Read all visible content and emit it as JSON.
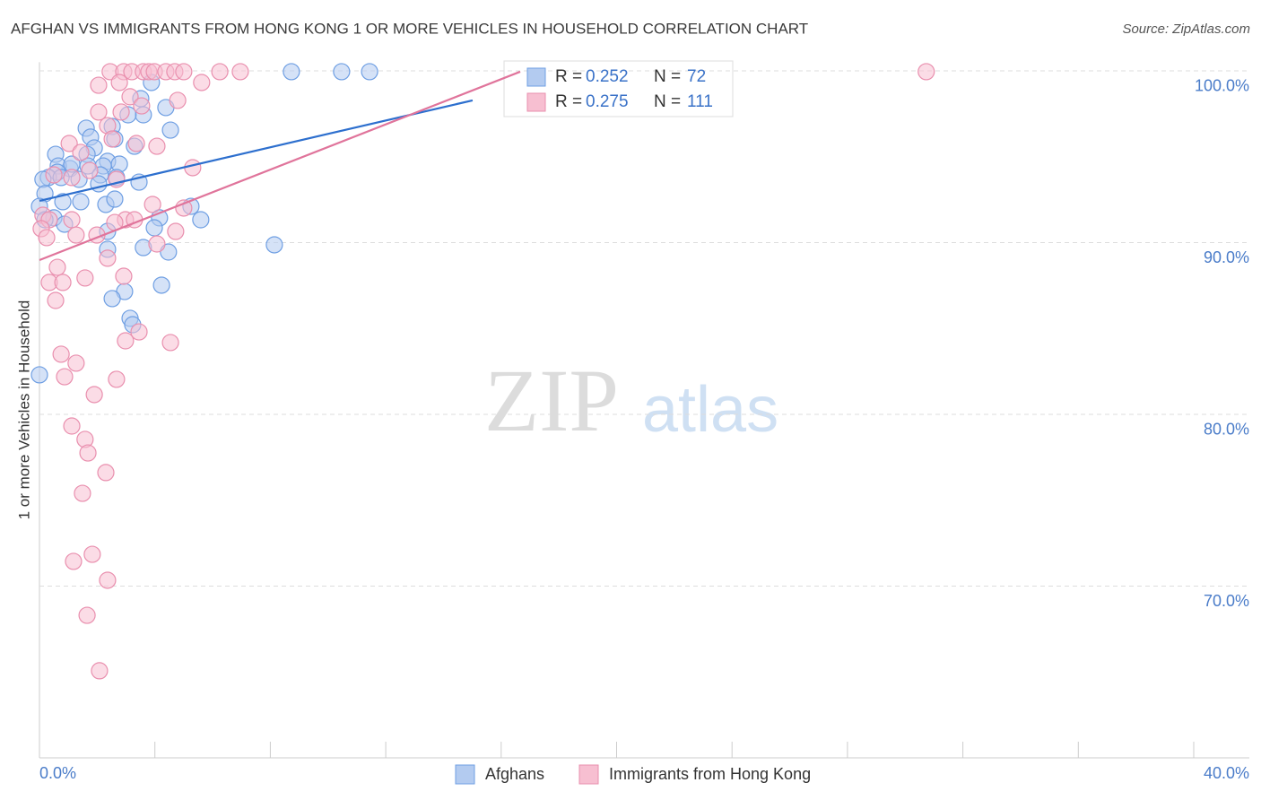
{
  "chart_data": {
    "type": "scatter",
    "title": "AFGHAN VS IMMIGRANTS FROM HONG KONG 1 OR MORE VEHICLES IN HOUSEHOLD CORRELATION CHART",
    "source": "Source: ZipAtlas.com",
    "y_label": "1 or more Vehicles in Household",
    "watermark": {
      "bold": "ZIP",
      "light": "atlas"
    },
    "xlim": [
      0,
      40
    ],
    "ylim": [
      60,
      100.5
    ],
    "xticks": [
      {
        "value": 0,
        "label": "0.0%"
      },
      {
        "value": 40,
        "label": "40.0%"
      }
    ],
    "xminor_ticks": [
      4,
      8,
      12,
      16,
      20,
      24,
      28,
      32,
      36
    ],
    "yticks": [
      {
        "value": 70,
        "label": "70.0%"
      },
      {
        "value": 80,
        "label": "80.0%"
      },
      {
        "value": 90,
        "label": "90.0%"
      },
      {
        "value": 100,
        "label": "100.0%"
      }
    ],
    "grid": true,
    "legend_box": {
      "r_label": "R =",
      "n_label": "N ="
    },
    "series": [
      {
        "name": "Afghans",
        "color": "#6f9fe3",
        "fill": "#b3cbf0",
        "line_color": "#2d6fce",
        "r": 0.252,
        "n": 72,
        "x": [
          8.73,
          10.47,
          11.44,
          3.88,
          4.38,
          3.6,
          3.07,
          3.51,
          1.62,
          2.52,
          4.54,
          1.77,
          0.56,
          1.9,
          2.61,
          3.29,
          1.65,
          2.36,
          2.77,
          1.06,
          0.65,
          1.12,
          1.68,
          2.21,
          0.62,
          0.31,
          0.12,
          0.75,
          1.37,
          2.11,
          2.67,
          3.45,
          2.05,
          0.19,
          0.81,
          1.43,
          2.3,
          2.61,
          5.25,
          0,
          4.16,
          5.59,
          0.5,
          0.19,
          0.87,
          3.98,
          2.36,
          8.14,
          3.6,
          4.47,
          2.36,
          4.23,
          2.95,
          2.52,
          3.14,
          3.23,
          0
        ],
        "values": [
          99.95,
          99.95,
          99.95,
          99.32,
          97.86,
          97.44,
          97.44,
          98.38,
          96.66,
          96.76,
          96.55,
          96.14,
          95.14,
          95.51,
          96.03,
          95.61,
          95.14,
          94.73,
          94.57,
          94.31,
          94.46,
          94.57,
          94.46,
          94.46,
          94.1,
          93.79,
          93.68,
          93.79,
          93.68,
          93.94,
          93.79,
          93.52,
          93.42,
          92.85,
          92.38,
          92.38,
          92.22,
          92.53,
          92.11,
          92.11,
          91.44,
          91.33,
          91.44,
          91.33,
          91.07,
          90.86,
          90.65,
          89.87,
          89.71,
          89.45,
          89.61,
          87.52,
          87.15,
          86.74,
          85.59,
          85.22,
          82.3
        ],
        "trend": {
          "x": [
            0,
            15.01
          ],
          "values": [
            92.43,
            98.28
          ]
        }
      },
      {
        "name": "Immigrants from Hong Kong",
        "color": "#e98fae",
        "fill": "#f7bfd1",
        "line_color": "#e0749b",
        "r": 0.275,
        "n": 111,
        "x": [
          2.45,
          2.92,
          3.2,
          3.6,
          3.79,
          3.98,
          4.38,
          4.69,
          5.0,
          6.25,
          6.96,
          30.73,
          2.05,
          2.77,
          5.62,
          3.14,
          4.79,
          3.54,
          2.05,
          2.83,
          2.36,
          2.52,
          3.36,
          4.07,
          1.03,
          1.43,
          0.5,
          1.12,
          1.74,
          5.31,
          2.67,
          3.92,
          5.0,
          2.98,
          2.61,
          3.29,
          1.12,
          0.12,
          0.34,
          0.06,
          0.25,
          4.72,
          1.99,
          1.27,
          4.07,
          0.62,
          2.36,
          0.34,
          0.81,
          1.58,
          0.56,
          2.92,
          2.98,
          4.54,
          3.45,
          0.75,
          1.27,
          0.87,
          2.67,
          1.9,
          1.12,
          1.58,
          1.68,
          2.3,
          1.49,
          1.83,
          1.18,
          2.36,
          1.65,
          2.08
        ],
        "values": [
          99.95,
          99.95,
          99.95,
          99.95,
          99.95,
          99.95,
          99.95,
          99.95,
          99.95,
          99.95,
          99.95,
          99.95,
          99.16,
          99.32,
          99.32,
          98.49,
          98.28,
          97.96,
          97.6,
          97.6,
          96.81,
          96.03,
          95.77,
          95.61,
          95.77,
          95.25,
          93.94,
          93.79,
          94.2,
          94.36,
          93.68,
          92.22,
          92.01,
          91.33,
          91.17,
          91.33,
          91.33,
          91.59,
          91.33,
          90.81,
          90.29,
          90.65,
          90.44,
          90.44,
          89.92,
          88.56,
          89.09,
          87.68,
          87.68,
          87.94,
          86.63,
          88.04,
          84.28,
          84.18,
          84.8,
          83.5,
          82.98,
          82.19,
          82.04,
          81.15,
          79.32,
          78.54,
          77.75,
          76.61,
          75.4,
          71.85,
          71.44,
          70.34,
          68.3,
          65.07
        ],
        "trend": {
          "x": [
            0,
            16.66
          ],
          "values": [
            88.98,
            99.95
          ]
        }
      }
    ]
  }
}
